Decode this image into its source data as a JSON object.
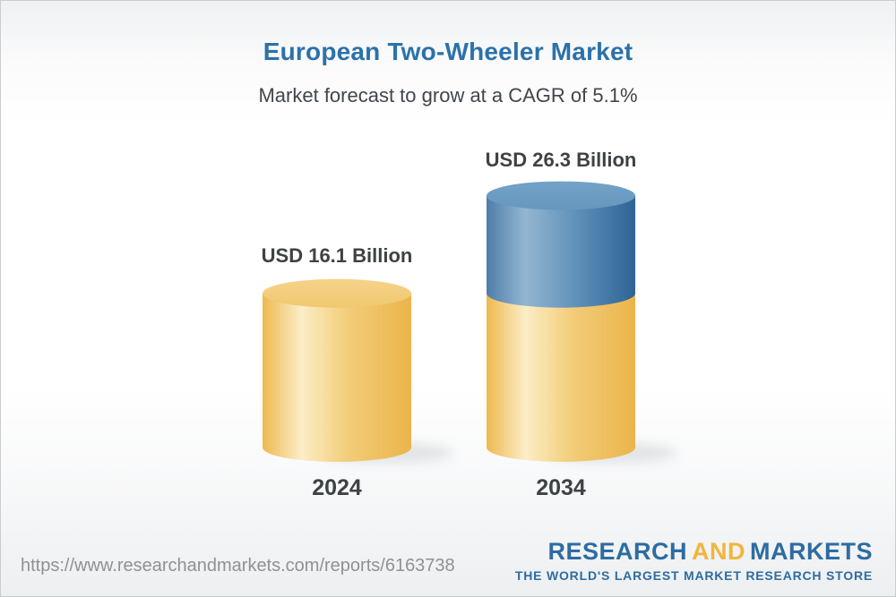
{
  "header": {
    "title": "European Two-Wheeler Market",
    "subtitle": "Market forecast to grow at a CAGR of 5.1%"
  },
  "chart_data": {
    "type": "bar",
    "subtype": "3d-cylinder",
    "title": "European Two-Wheeler Market",
    "subtitle": "Market forecast to grow at a CAGR of 5.1%",
    "unit": "USD Billion",
    "cagr_percent": 5.1,
    "categories": [
      "2024",
      "2034"
    ],
    "values": [
      16.1,
      26.3
    ],
    "bars": [
      {
        "label": "2024",
        "value_label": "USD 16.1 Billion",
        "total": 16.1,
        "segments": [
          {
            "name": "market-size-2024",
            "value": 16.1,
            "color": "gold"
          }
        ]
      },
      {
        "label": "2034",
        "value_label": "USD 26.3 Billion",
        "total": 26.3,
        "segments": [
          {
            "name": "base-2024-level",
            "value": 16.1,
            "color": "gold"
          },
          {
            "name": "growth-2024-2034",
            "value": 10.2,
            "color": "blue"
          }
        ]
      }
    ],
    "colors": {
      "gold": "#f0bc59",
      "blue": "#4a7aa6",
      "label_text": "#3d4246",
      "title_blue": "#2b72aa",
      "subtitle_gray": "#3f464d"
    },
    "legend_position": "none",
    "grid": false
  },
  "footer": {
    "url": "https://www.researchandmarkets.com/reports/6163738"
  },
  "logo": {
    "word1": "RESEARCH",
    "word2": "AND",
    "word3": "MARKETS",
    "tagline": "THE WORLD'S LARGEST MARKET RESEARCH STORE",
    "blue": "#2d6ca2",
    "gold": "#f1b53f"
  }
}
